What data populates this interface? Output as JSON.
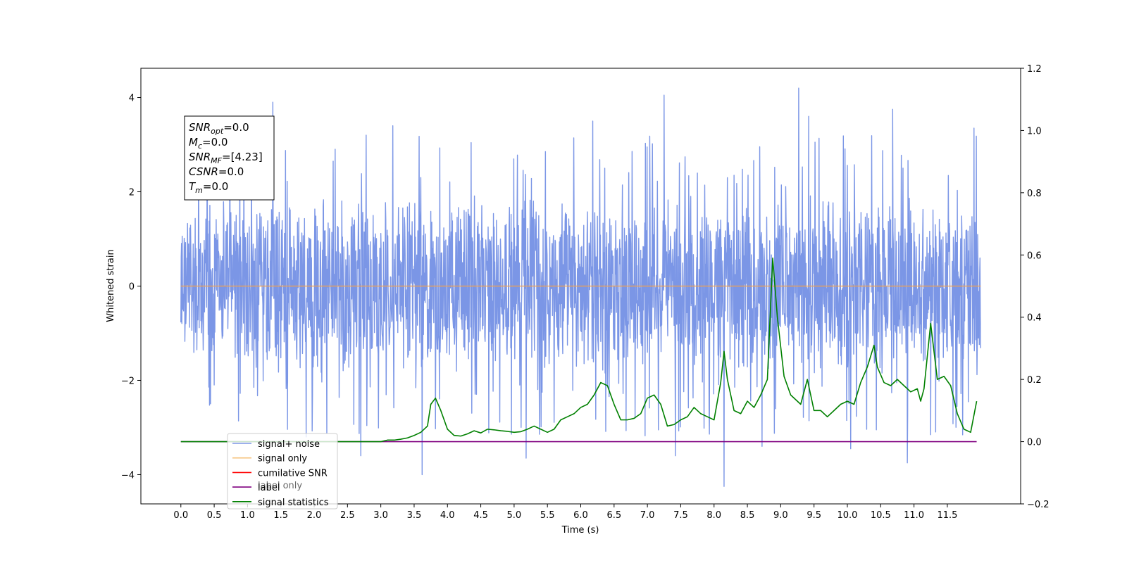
{
  "chart_data": {
    "type": "line",
    "xlabel": "Time (s)",
    "ylabel": "Whitened strain",
    "title": "",
    "xlim": [
      -0.6,
      12.6
    ],
    "ylim": [
      -4.62,
      4.62
    ],
    "y2lim": [
      -0.2,
      1.2
    ],
    "xticks": [
      "0.0",
      "0.5",
      "1.0",
      "1.5",
      "2.0",
      "2.5",
      "3.0",
      "3.5",
      "4.0",
      "4.5",
      "5.0",
      "5.5",
      "6.0",
      "6.5",
      "7.0",
      "7.5",
      "8.0",
      "8.5",
      "9.0",
      "9.5",
      "10.0",
      "10.5",
      "11.0",
      "11.5"
    ],
    "yticks": [
      "−4",
      "−2",
      "0",
      "2",
      "4"
    ],
    "y2ticks": [
      "−0.2",
      "0.0",
      "0.2",
      "0.4",
      "0.6",
      "0.8",
      "1.0",
      "1.2"
    ],
    "series": [
      {
        "name": "signal+ noise",
        "color": "#7b96e6",
        "axis": "left",
        "x_range": [
          0.0,
          12.0
        ],
        "band": [
          -1.8,
          1.7
        ],
        "spikes": [
          [
            1.38,
            3.9
          ],
          [
            2.78,
            3.2
          ],
          [
            3.18,
            3.4
          ],
          [
            6.18,
            3.5
          ],
          [
            7.25,
            4.05
          ],
          [
            9.27,
            4.2
          ],
          [
            9.42,
            3.6
          ],
          [
            10.68,
            3.75
          ],
          [
            11.9,
            3.35
          ],
          [
            3.62,
            -4.0
          ],
          [
            5.18,
            -3.65
          ],
          [
            8.15,
            -4.25
          ],
          [
            10.9,
            -3.75
          ],
          [
            7.42,
            -3.6
          ],
          [
            2.7,
            -3.6
          ],
          [
            10.05,
            -3.45
          ],
          [
            8.72,
            -3.4
          ],
          [
            1.88,
            -3.2
          ]
        ]
      },
      {
        "name": "signal only",
        "color": "#f5a14a",
        "axis": "left",
        "x": [
          0.0,
          12.0
        ],
        "y": [
          0.0,
          0.0
        ]
      },
      {
        "name": "cumilative SNR",
        "color": "#ff0000",
        "axis": "right",
        "x": [
          0.0,
          12.0
        ],
        "y": [
          0.0,
          0.0
        ]
      },
      {
        "name": "label",
        "color": "#800080",
        "axis": "right",
        "x": [
          0.0,
          11.94
        ],
        "y": [
          0.0,
          0.0
        ]
      },
      {
        "name": "signal statistics",
        "color": "#008000",
        "axis": "right",
        "x": [
          0.0,
          0.5,
          1.0,
          1.5,
          2.0,
          2.5,
          3.0,
          3.1,
          3.2,
          3.3,
          3.4,
          3.5,
          3.6,
          3.7,
          3.75,
          3.82,
          3.9,
          4.0,
          4.1,
          4.2,
          4.3,
          4.4,
          4.5,
          4.6,
          4.7,
          4.8,
          4.9,
          5.0,
          5.1,
          5.2,
          5.3,
          5.4,
          5.5,
          5.6,
          5.7,
          5.8,
          5.9,
          6.0,
          6.1,
          6.2,
          6.3,
          6.4,
          6.5,
          6.6,
          6.7,
          6.8,
          6.9,
          7.0,
          7.1,
          7.2,
          7.3,
          7.4,
          7.5,
          7.6,
          7.7,
          7.8,
          7.9,
          8.0,
          8.1,
          8.15,
          8.2,
          8.3,
          8.4,
          8.5,
          8.6,
          8.7,
          8.8,
          8.88,
          8.95,
          9.05,
          9.15,
          9.3,
          9.4,
          9.5,
          9.6,
          9.7,
          9.8,
          9.9,
          10.0,
          10.1,
          10.2,
          10.3,
          10.4,
          10.45,
          10.55,
          10.65,
          10.75,
          10.85,
          10.95,
          11.05,
          11.1,
          11.15,
          11.25,
          11.35,
          11.45,
          11.55,
          11.65,
          11.75,
          11.85,
          11.94
        ],
        "y": [
          0.0,
          0.0,
          0.0,
          0.0,
          0.0,
          0.0,
          0.0,
          0.005,
          0.005,
          0.008,
          0.012,
          0.02,
          0.03,
          0.05,
          0.12,
          0.14,
          0.1,
          0.04,
          0.02,
          0.018,
          0.025,
          0.035,
          0.028,
          0.04,
          0.038,
          0.035,
          0.033,
          0.03,
          0.032,
          0.04,
          0.05,
          0.04,
          0.03,
          0.04,
          0.07,
          0.08,
          0.09,
          0.11,
          0.12,
          0.15,
          0.19,
          0.18,
          0.12,
          0.07,
          0.07,
          0.075,
          0.09,
          0.14,
          0.15,
          0.12,
          0.05,
          0.055,
          0.07,
          0.08,
          0.11,
          0.09,
          0.08,
          0.07,
          0.19,
          0.29,
          0.2,
          0.1,
          0.09,
          0.13,
          0.11,
          0.15,
          0.2,
          0.59,
          0.4,
          0.21,
          0.15,
          0.12,
          0.2,
          0.1,
          0.1,
          0.08,
          0.1,
          0.12,
          0.13,
          0.12,
          0.19,
          0.24,
          0.31,
          0.24,
          0.19,
          0.18,
          0.2,
          0.18,
          0.16,
          0.17,
          0.13,
          0.17,
          0.38,
          0.2,
          0.21,
          0.18,
          0.09,
          0.04,
          0.03,
          0.13
        ]
      }
    ],
    "legend": {
      "placement": "lower-left",
      "entries": [
        {
          "label": "signal+ noise",
          "color": "#7b96e6"
        },
        {
          "label": "signal only",
          "color": "#f5c27a"
        },
        {
          "label": "cumilative SNR",
          "color": "#ff0000"
        },
        {
          "label": "label",
          "color": "#800080"
        },
        {
          "label": "signal statistics",
          "color": "#008000"
        }
      ]
    },
    "hidden_text": {
      "label_only": "label only"
    },
    "annotation": {
      "lines": [
        {
          "base": "SNR",
          "sub": "opt",
          "rest": "=0.0"
        },
        {
          "base": "M",
          "sub": "c",
          "rest": "=0.0"
        },
        {
          "base": "SNR",
          "sub": "MF",
          "rest": "=[4.23]"
        },
        {
          "base": "CSNR",
          "sub": "",
          "rest": "=0.0"
        },
        {
          "base": "T",
          "sub": "m",
          "rest": "=0.0"
        }
      ]
    }
  }
}
